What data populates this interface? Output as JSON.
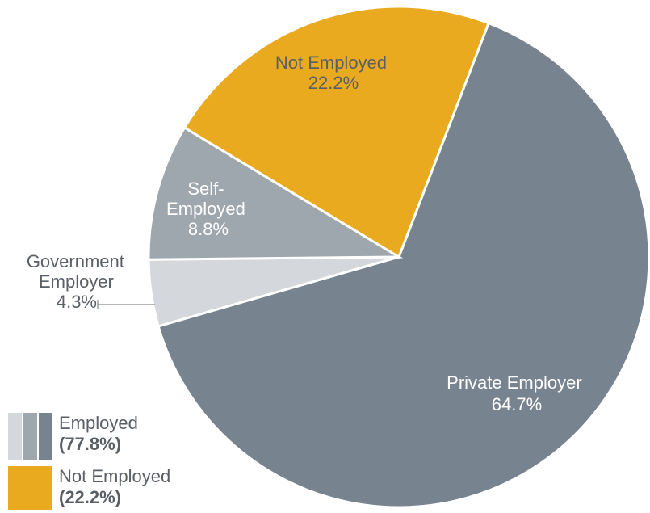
{
  "chart_data": {
    "type": "pie",
    "slices": [
      {
        "label": "Private Employer",
        "value": 64.7,
        "display": "64.7%",
        "color": "#77838f"
      },
      {
        "label": "Government Employer",
        "value": 4.3,
        "display": "4.3%",
        "color": "#d4d7db"
      },
      {
        "label": "Self-Employed",
        "value": 8.8,
        "display": "8.8%",
        "color": "#9ea6ae"
      },
      {
        "label": "Not Employed",
        "value": 22.2,
        "display": "22.2%",
        "color": "#e9aa1f"
      }
    ],
    "legend": [
      {
        "label": "Employed",
        "pct": "(77.8%)",
        "colors": [
          "#d4d7db",
          "#9ea6ae",
          "#77838f"
        ]
      },
      {
        "label": "Not Employed",
        "pct": "(22.2%)",
        "colors": [
          "#e9aa1f"
        ]
      }
    ]
  }
}
